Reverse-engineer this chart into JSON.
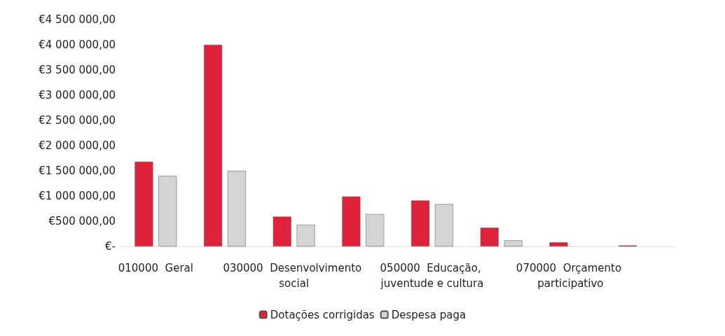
{
  "chart_data": {
    "type": "bar",
    "categories": [
      "010000  Geral",
      null,
      "030000  Desenvolvimento social",
      null,
      "050000  Educação, juventude e cultura",
      null,
      "070000  Orçamento participativo",
      null
    ],
    "series": [
      {
        "name": "Dotações corrigidas",
        "color": "#e0213a",
        "values": [
          1680000,
          4000000,
          590000,
          990000,
          910000,
          370000,
          80000,
          20000
        ]
      },
      {
        "name": "Despesa paga",
        "color": "#d4d4d4",
        "values": [
          1400000,
          1500000,
          430000,
          640000,
          840000,
          120000,
          null,
          null
        ]
      }
    ],
    "ylim": [
      0,
      4500000
    ],
    "yticks": [
      {
        "value": 0,
        "label": "€-"
      },
      {
        "value": 500000,
        "label": "€500 000,00"
      },
      {
        "value": 1000000,
        "label": "€1 000 000,00"
      },
      {
        "value": 1500000,
        "label": "€1 500 000,00"
      },
      {
        "value": 2000000,
        "label": "€2 000 000,00"
      },
      {
        "value": 2500000,
        "label": "€2 500 000,00"
      },
      {
        "value": 3000000,
        "label": "€3 000 000,00"
      },
      {
        "value": 3500000,
        "label": "€3 500 000,00"
      },
      {
        "value": 4000000,
        "label": "€4 000 000,00"
      },
      {
        "value": 4500000,
        "label": "€4 500 000,00"
      }
    ],
    "legend": "bottom"
  }
}
